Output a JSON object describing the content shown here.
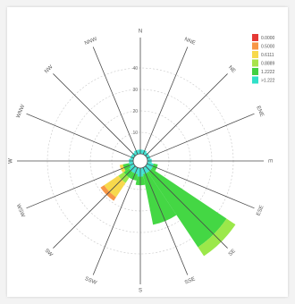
{
  "chart_data": {
    "type": "windrose",
    "title": "",
    "directions": [
      "N",
      "NNE",
      "NE",
      "ENE",
      "E",
      "ESE",
      "SE",
      "SSE",
      "S",
      "SSW",
      "SW",
      "WSW",
      "W",
      "WNW",
      "NW",
      "NNW"
    ],
    "radial_ticks": [
      "10",
      "20",
      "30",
      "40"
    ],
    "rmax": 50,
    "legend": [
      {
        "label": "0.0000",
        "color": "#e53935"
      },
      {
        "label": "0.5000",
        "color": "#f79646"
      },
      {
        "label": "0.6111",
        "color": "#f7d94c"
      },
      {
        "label": "0.8889",
        "color": "#a9e34b"
      },
      {
        "label": "1.2222",
        "color": "#40d040"
      },
      {
        "label": ">1.222",
        "color": "#30e0c8"
      }
    ],
    "series_colors": [
      "#40e0d0",
      "#44d744",
      "#9be84a",
      "#f7d94c",
      "#f79646",
      "#e53935"
    ],
    "sectors": [
      {
        "dir": "N",
        "values": [
          2.0,
          0.0,
          0.0,
          0.0,
          0.0,
          0.0
        ]
      },
      {
        "dir": "NNE",
        "values": [
          2.0,
          0.0,
          0.0,
          0.0,
          0.0,
          0.0
        ]
      },
      {
        "dir": "NE",
        "values": [
          1.5,
          0.0,
          0.0,
          0.0,
          0.0,
          0.0
        ]
      },
      {
        "dir": "ENE",
        "values": [
          1.5,
          0.0,
          0.0,
          0.0,
          0.0,
          0.0
        ]
      },
      {
        "dir": "E",
        "values": [
          2.0,
          0.0,
          0.0,
          0.0,
          0.0,
          0.0
        ]
      },
      {
        "dir": "ESE",
        "values": [
          3.0,
          2.0,
          0.0,
          0.0,
          0.0,
          0.0
        ]
      },
      {
        "dir": "SE",
        "values": [
          3.0,
          42.0,
          5.0,
          0.0,
          0.0,
          0.0
        ]
      },
      {
        "dir": "SSE",
        "values": [
          3.0,
          24.0,
          0.0,
          0.0,
          0.0,
          0.0
        ]
      },
      {
        "dir": "S",
        "values": [
          4.0,
          4.0,
          0.0,
          0.0,
          0.0,
          0.0
        ]
      },
      {
        "dir": "SSW",
        "values": [
          3.0,
          3.0,
          0.0,
          0.0,
          0.0,
          0.0
        ]
      },
      {
        "dir": "SW",
        "values": [
          3.0,
          3.0,
          3.0,
          8.0,
          2.0,
          0.0
        ]
      },
      {
        "dir": "WSW",
        "values": [
          2.0,
          3.0,
          0.0,
          1.5,
          0.0,
          0.0
        ]
      },
      {
        "dir": "W",
        "values": [
          2.0,
          0.0,
          0.0,
          0.0,
          0.0,
          0.0
        ]
      },
      {
        "dir": "WNW",
        "values": [
          1.5,
          0.0,
          0.0,
          0.0,
          0.0,
          0.0
        ]
      },
      {
        "dir": "NW",
        "values": [
          1.5,
          0.0,
          0.0,
          0.0,
          0.0,
          0.0
        ]
      },
      {
        "dir": "NNW",
        "values": [
          2.0,
          0.0,
          0.0,
          0.0,
          0.0,
          0.0
        ]
      }
    ],
    "grid": true,
    "legend_position": "top-right"
  }
}
